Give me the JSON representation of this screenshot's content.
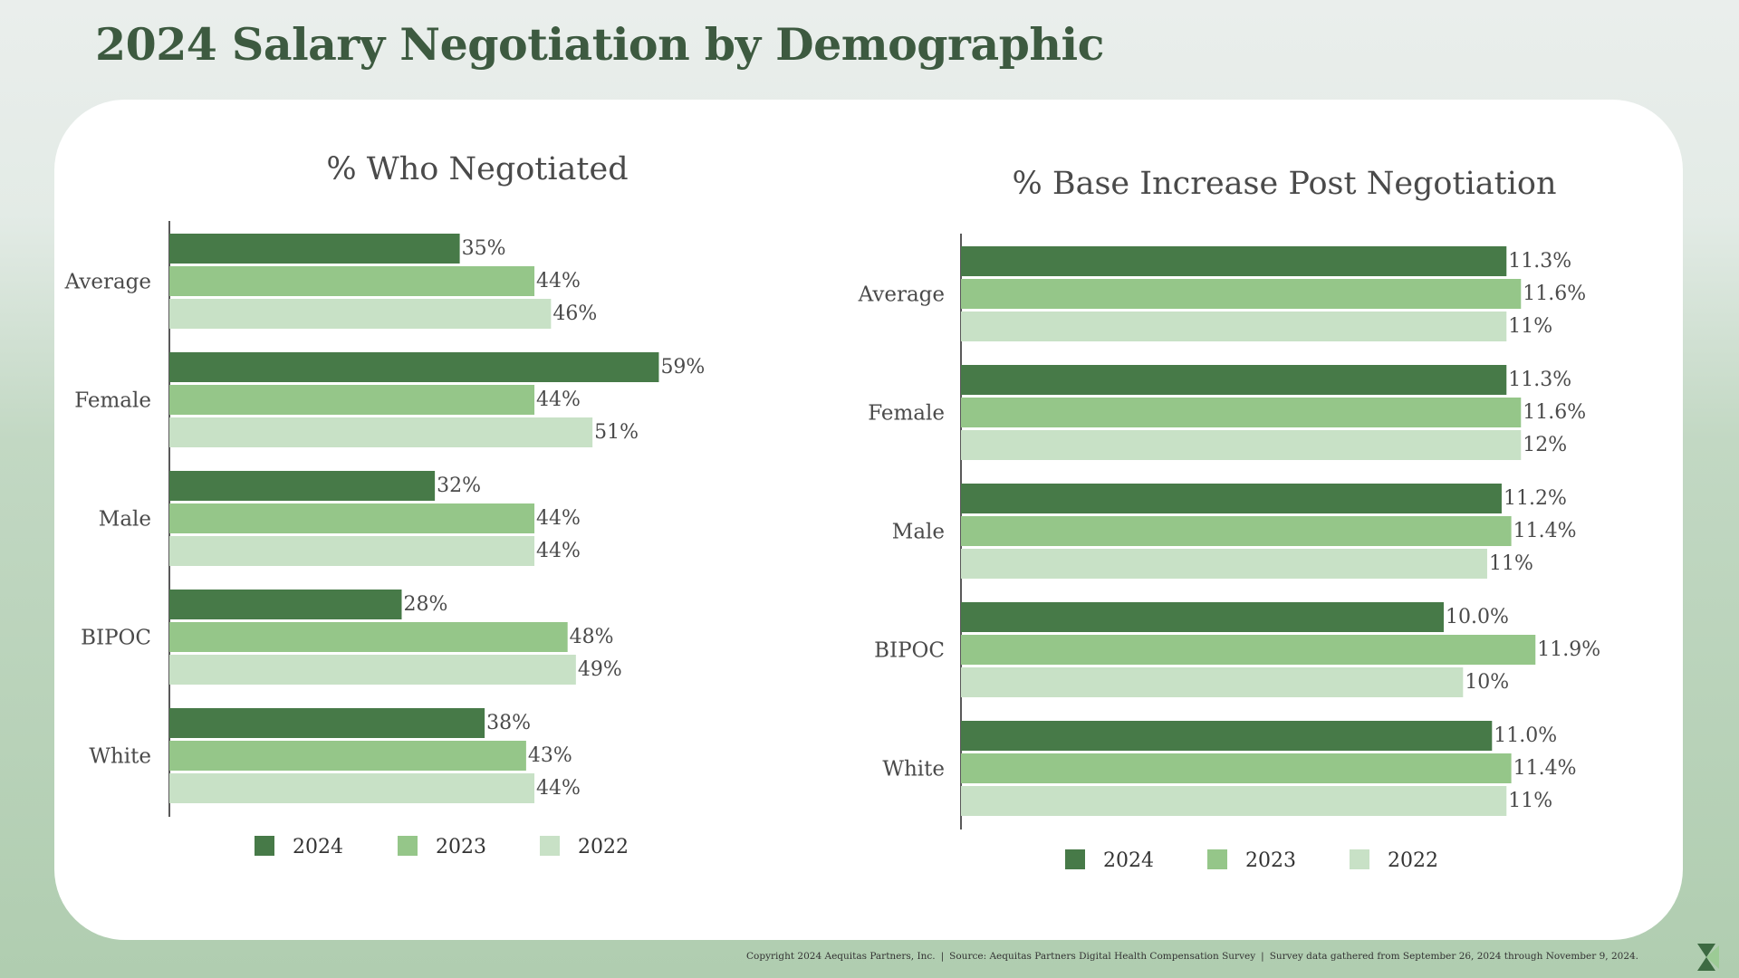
{
  "page": {
    "title": "2024 Salary Negotiation by Demographic",
    "footer": {
      "copyright": "Copyright 2024 Aequitas Partners, Inc.",
      "separator": "|",
      "source": "Source: Aequitas Partners Digital Health Compensation Survey",
      "survey_dates": "Survey data gathered from September 26, 2024 through November 9, 2024."
    },
    "logo_icon": "aequitas-logo-icon"
  },
  "colors": {
    "2024": "#477a48",
    "2023": "#95c689",
    "2022": "#c8e1c6",
    "title": "#3d5a40",
    "text": "#4a4a4a"
  },
  "chart_data": [
    {
      "type": "bar",
      "orientation": "horizontal",
      "title": "% Who Negotiated",
      "categories": [
        "Average",
        "Female",
        "Male",
        "BIPOC",
        "White"
      ],
      "xlim": [
        0,
        100
      ],
      "legend_position": "bottom",
      "series": [
        {
          "name": "2024",
          "values": [
            35,
            59,
            32,
            28,
            38
          ],
          "labels": [
            "35%",
            "59%",
            "32%",
            "28%",
            "38%"
          ]
        },
        {
          "name": "2023",
          "values": [
            44,
            44,
            44,
            48,
            43
          ],
          "labels": [
            "44%",
            "44%",
            "44%",
            "48%",
            "43%"
          ]
        },
        {
          "name": "2022",
          "values": [
            46,
            51,
            44,
            49,
            44
          ],
          "labels": [
            "46%",
            "51%",
            "44%",
            "49%",
            "44%"
          ]
        }
      ]
    },
    {
      "type": "bar",
      "orientation": "horizontal",
      "title": "% Base Increase Post Negotiation",
      "categories": [
        "Average",
        "Female",
        "Male",
        "BIPOC",
        "White"
      ],
      "xlim": [
        0,
        12.6
      ],
      "legend_position": "bottom",
      "series": [
        {
          "name": "2024",
          "values": [
            11.3,
            11.3,
            11.2,
            10.0,
            11.0
          ],
          "labels": [
            "11.3%",
            "11.3%",
            "11.2%",
            "10.0%",
            "11.0%"
          ]
        },
        {
          "name": "2023",
          "values": [
            11.6,
            11.6,
            11.4,
            11.9,
            11.4
          ],
          "labels": [
            "11.6%",
            "11.6%",
            "11.4%",
            "11.9%",
            "11.4%"
          ]
        },
        {
          "name": "2022",
          "values": [
            11.3,
            11.6,
            10.9,
            10.4,
            11.3
          ],
          "labels": [
            "11%",
            "12%",
            "11%",
            "10%",
            "11%"
          ]
        }
      ]
    }
  ]
}
